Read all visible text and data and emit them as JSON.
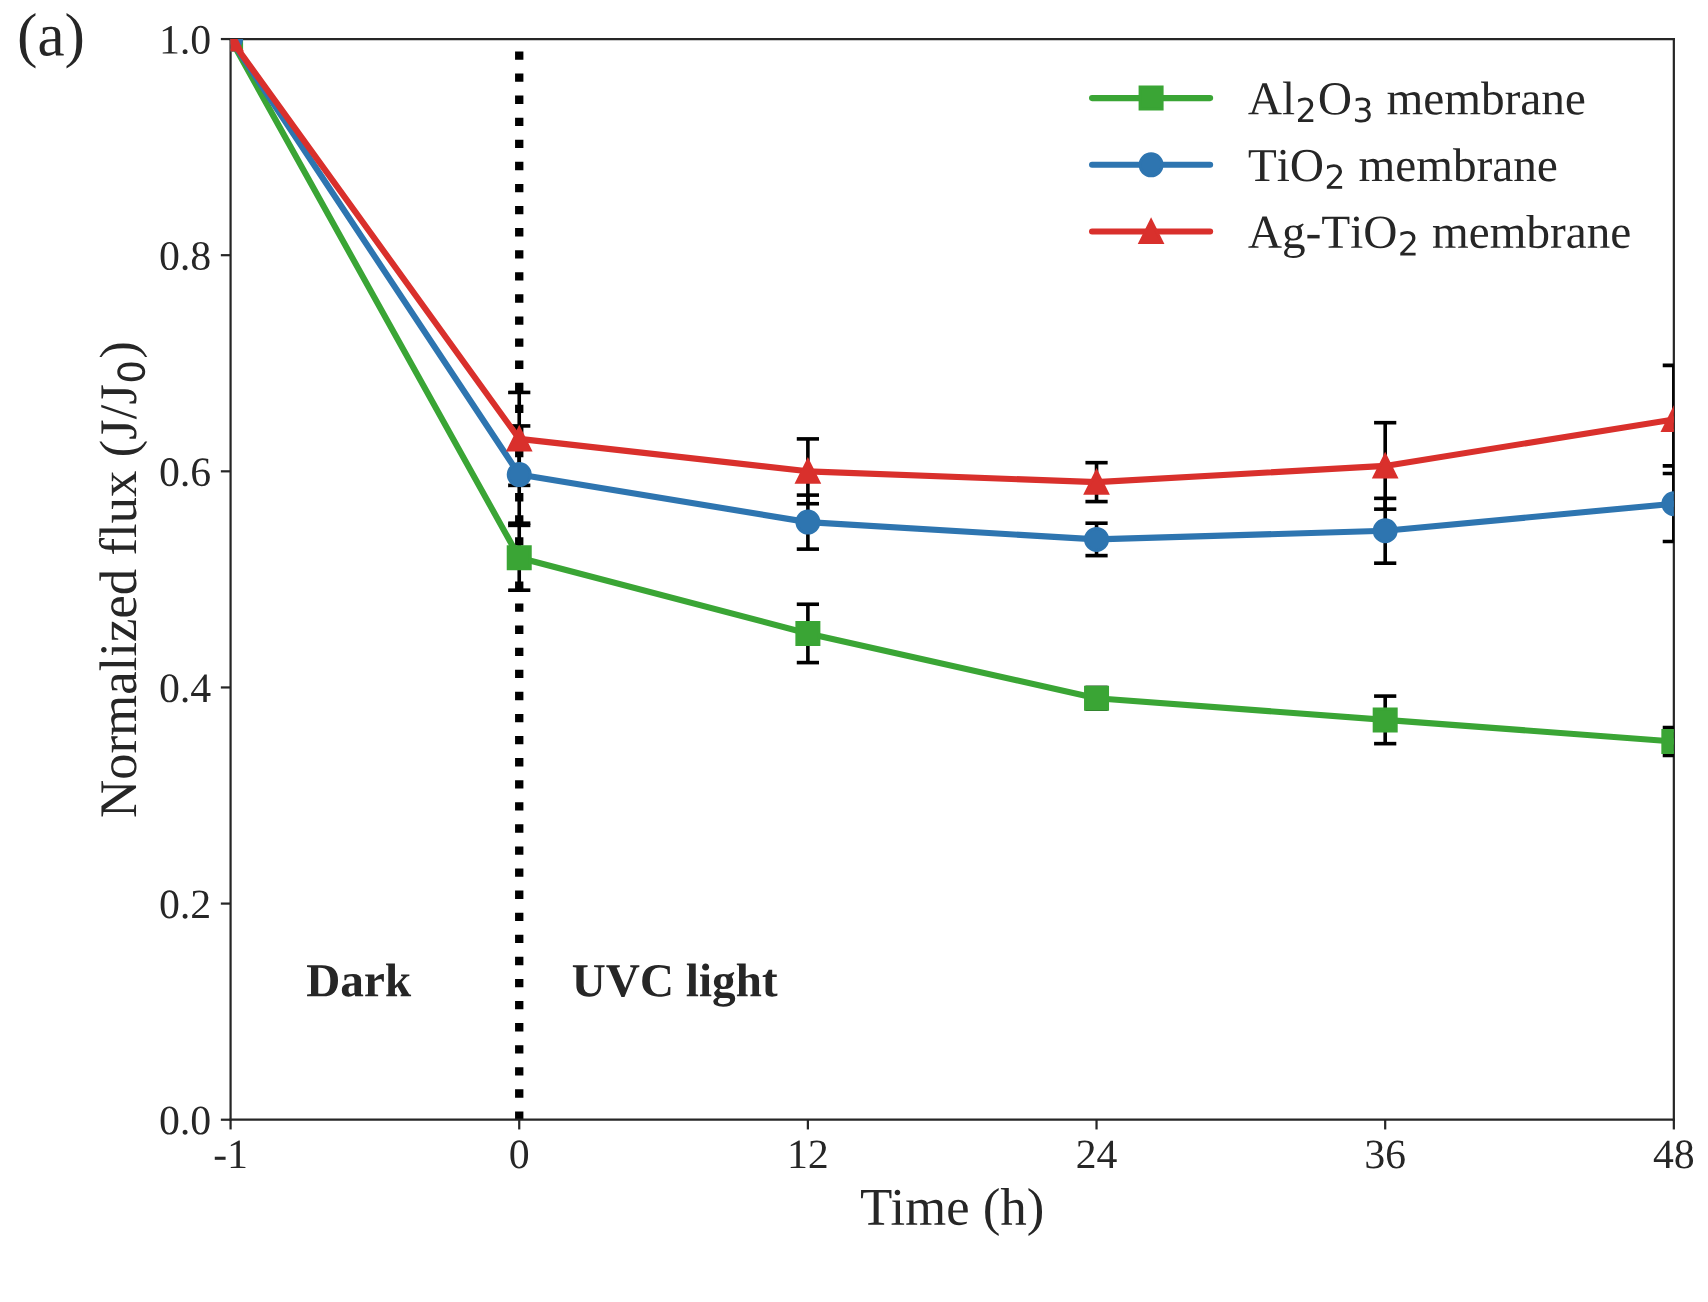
{
  "chart_data": {
    "type": "line",
    "xlabel": "Time (h)",
    "ylabel": "Normalized flux (J/J$_{0}$)",
    "categories": [
      "-1",
      "0",
      "12",
      "24",
      "36",
      "48"
    ],
    "ylim": [
      0.0,
      1.0
    ],
    "yticks": [
      {
        "value": 0,
        "label": "0.0"
      },
      0.2,
      0.4,
      0.6,
      0.8,
      {
        "value": 1,
        "label": "1.0"
      }
    ],
    "series": [
      {
        "name": "Al$_{2}$O$_{3}$ membrane",
        "color": "#3aa535",
        "marker": "square",
        "values": [
          1.0,
          0.52,
          0.45,
          0.39,
          0.37,
          0.35
        ],
        "errors": [
          null,
          0.03,
          0.027,
          0.01,
          0.022,
          0.013
        ]
      },
      {
        "name": "TiO$_{2}$ membrane",
        "color": "#2e75b0",
        "marker": "circle",
        "values": [
          1.0,
          0.597,
          0.553,
          0.537,
          0.545,
          0.57
        ],
        "errors": [
          null,
          0.045,
          0.025,
          0.015,
          0.03,
          0.035
        ]
      },
      {
        "name": "Ag-TiO$_{2}$ membrane",
        "color": "#d9302c",
        "marker": "triangle",
        "values": [
          1.0,
          0.63,
          0.6,
          0.59,
          0.605,
          0.648
        ],
        "errors": [
          null,
          0.043,
          0.03,
          0.018,
          0.04,
          0.05
        ]
      }
    ],
    "ref_lines": [
      {
        "axis": "x",
        "value": "0",
        "line_style": "dotted",
        "color": "#000000"
      }
    ],
    "annotations": [
      "(a)",
      "Dark",
      "UVC light"
    ],
    "legend": "top right",
    "grid": false
  }
}
